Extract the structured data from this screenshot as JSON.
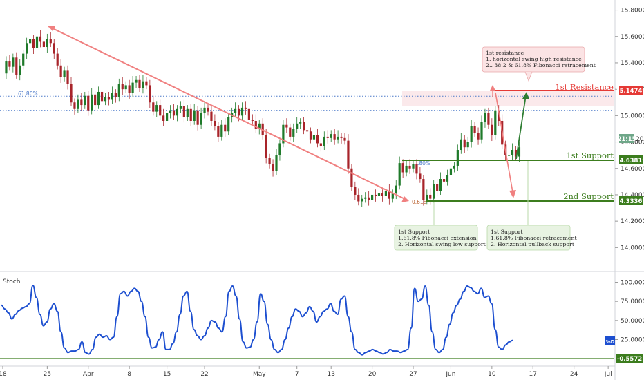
{
  "chart_data": {
    "type": "candlestick",
    "price_axis": {
      "ylim": [
        13.85,
        15.85
      ],
      "ticks": [
        15.8,
        15.6,
        15.4,
        15.2,
        15.0,
        14.8,
        14.6,
        14.4,
        14.2,
        14.0
      ],
      "tick_labels": [
        "15.80000",
        "15.60000",
        "15.40000",
        "15.20000",
        "15.00000",
        "14.80000",
        "14.60000",
        "14.40000",
        "14.20000",
        "14.00000"
      ]
    },
    "time_axis": {
      "labels": [
        "18",
        "25",
        "Apr",
        "8",
        "15",
        "22",
        "May",
        "7",
        "13",
        "20",
        "27",
        "Jun",
        "10",
        "17",
        "24",
        "Jul"
      ],
      "label_bars": [
        0,
        13,
        25,
        37,
        48,
        59,
        75,
        86,
        96,
        108,
        120,
        131,
        143,
        155,
        167,
        177
      ]
    },
    "price_series": [
      15.32,
      15.41,
      15.37,
      15.44,
      15.31,
      15.38,
      15.47,
      15.55,
      15.58,
      15.51,
      15.6,
      15.56,
      15.52,
      15.58,
      15.55,
      15.47,
      15.38,
      15.29,
      15.34,
      15.24,
      15.1,
      15.05,
      15.12,
      15.08,
      15.15,
      15.04,
      15.16,
      15.08,
      15.18,
      15.11,
      15.14,
      15.12,
      15.17,
      15.14,
      15.24,
      15.2,
      15.23,
      15.17,
      15.25,
      15.27,
      15.21,
      15.26,
      15.23,
      15.1,
      15.03,
      15.08,
      15.0,
      14.96,
      15.02,
      15.04,
      15.0,
      15.05,
      15.07,
      14.99,
      15.05,
      14.96,
      15.04,
      14.93,
      15.02,
      15.06,
      15.03,
      14.96,
      14.92,
      14.84,
      14.93,
      14.88,
      14.99,
      15.02,
      15.05,
      15.0,
      15.06,
      15.05,
      14.97,
      14.96,
      14.9,
      14.94,
      14.85,
      14.68,
      14.63,
      14.58,
      14.7,
      14.79,
      14.93,
      14.91,
      14.84,
      14.9,
      14.94,
      14.95,
      14.89,
      14.88,
      14.82,
      14.85,
      14.79,
      14.77,
      14.84,
      14.83,
      14.86,
      14.82,
      14.84,
      14.83,
      14.81,
      14.6,
      14.46,
      14.4,
      14.35,
      14.37,
      14.38,
      14.36,
      14.4,
      14.39,
      14.41,
      14.39,
      14.43,
      14.37,
      14.41,
      14.47,
      14.64,
      14.57,
      14.62,
      14.6,
      14.63,
      14.56,
      14.52,
      14.36,
      14.4,
      14.37,
      14.48,
      14.43,
      14.52,
      14.5,
      14.55,
      14.6,
      14.62,
      14.74,
      14.82,
      14.76,
      14.8,
      14.92,
      14.87,
      14.82,
      14.95,
      15.02,
      14.93,
      14.85,
      15.04,
      14.96,
      14.78,
      14.7,
      14.7,
      14.74,
      14.69,
      14.76
    ],
    "stoch_series": [
      70,
      65,
      60,
      52,
      58,
      63,
      66,
      68,
      72,
      96,
      80,
      58,
      43,
      48,
      65,
      72,
      62,
      35,
      14,
      8,
      10,
      10,
      12,
      22,
      8,
      6,
      12,
      28,
      32,
      28,
      30,
      25,
      28,
      55,
      85,
      88,
      82,
      88,
      92,
      88,
      75,
      55,
      28,
      14,
      15,
      25,
      35,
      12,
      12,
      20,
      35,
      58,
      82,
      88,
      62,
      38,
      30,
      25,
      30,
      40,
      50,
      48,
      40,
      35,
      55,
      88,
      95,
      82,
      52,
      22,
      14,
      15,
      25,
      48,
      85,
      75,
      45,
      25,
      12,
      8,
      12,
      25,
      40,
      55,
      65,
      62,
      55,
      60,
      68,
      62,
      48,
      55,
      62,
      65,
      72,
      62,
      58,
      78,
      82,
      55,
      35,
      12,
      8,
      5,
      8,
      10,
      12,
      10,
      8,
      6,
      8,
      12,
      10,
      10,
      8,
      10,
      12,
      40,
      92,
      75,
      78,
      95,
      70,
      35,
      12,
      8,
      12,
      28,
      45,
      60,
      70,
      78,
      88,
      95,
      93,
      88,
      85,
      92,
      80,
      82,
      72,
      38,
      15,
      12,
      18,
      22,
      24
    ],
    "stoch_axis": {
      "ylim": [
        -8,
        105
      ],
      "ticks": [
        100,
        75,
        50,
        25
      ],
      "tick_labels": [
        "100.0000",
        "75.0000",
        "50.0000",
        "25.0000"
      ]
    },
    "fib_levels": [
      {
        "label": "61.80%",
        "value": 15.147
      },
      {
        "label": "",
        "value": 15.04
      }
    ],
    "current_price_level": 14.8
  },
  "labels": {
    "stoch_title": "Stoch",
    "resistance_1": "1st Resistance",
    "support_1": "1st Support",
    "support_2": "2nd Support",
    "fib_618": "61.80%",
    "fib_0618": "0.618",
    "fib_80": ".80%",
    "tag_resistance": "15.14749",
    "tag_support_1": "14.63819",
    "tag_support_2": "14.33369",
    "tag_time": "21:15",
    "tag_time_suffix": "20",
    "tag_d": "%D",
    "tag_stoch_value": "-0.5572"
  },
  "annotations": {
    "resistance_box": [
      "1st resistance",
      "1. horizontal swing high resistance",
      "2.. 38.2 & 61.8% Fibonacci retracement"
    ],
    "support_box_1": [
      "1st Support",
      "1.61.8% Fibonacci extension",
      "2. Horizontal swing low support"
    ],
    "support_box_2": [
      "1st Support",
      "1.61.8% Fibonacci retracement",
      "2. Horizontal pullback support"
    ]
  },
  "colors": {
    "bull": "#1f7a2a",
    "bear": "#a8242a",
    "stoch_line": "#1d4fd0",
    "resistance": "#e53935",
    "support": "#3c7d1e",
    "trend_arrow": "#f08080",
    "up_arrow": "#2e7d32",
    "fib_dotted": "#4a78c8"
  }
}
